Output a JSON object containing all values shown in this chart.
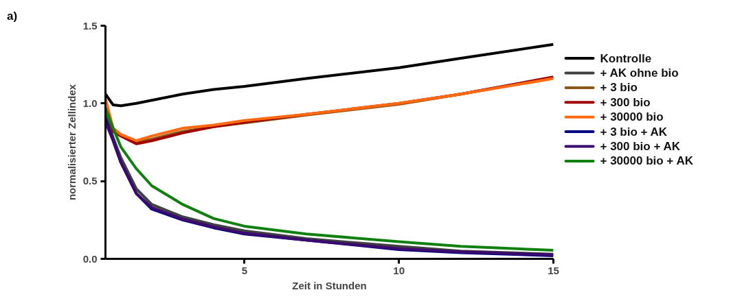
{
  "chart_data": {
    "type": "line",
    "title": "a)",
    "xlabel": "Zeit in Stunden",
    "ylabel": "normalisierter Zellindex",
    "x": [
      0.5,
      0.75,
      1,
      1.5,
      2,
      3,
      4,
      5,
      7,
      10,
      12,
      15
    ],
    "xlim": [
      0.5,
      15
    ],
    "xticks": [
      5,
      10,
      15
    ],
    "ylim": [
      0,
      1.5
    ],
    "yticks": [
      {
        "value": 0,
        "label": "0.0"
      },
      {
        "value": 0.5,
        "label": "0.5"
      },
      {
        "value": 1,
        "label": "1.0"
      },
      {
        "value": 1.5,
        "label": "1.5"
      }
    ],
    "grid": false,
    "legend": "right",
    "marker": "none",
    "line_style": "solid",
    "series": [
      {
        "name": "Kontrolle",
        "color": "#000000",
        "values": [
          1.06,
          0.99,
          0.985,
          1.0,
          1.02,
          1.06,
          1.09,
          1.11,
          1.16,
          1.23,
          1.29,
          1.38
        ]
      },
      {
        "name": "+ AK ohne bio",
        "color": "#404040",
        "values": [
          0.93,
          0.78,
          0.65,
          0.45,
          0.35,
          0.27,
          0.22,
          0.18,
          0.13,
          0.08,
          0.05,
          0.03
        ]
      },
      {
        "name": "+ 3 bio",
        "color": "#8b5a1b",
        "values": [
          1.0,
          0.82,
          0.8,
          0.75,
          0.77,
          0.82,
          0.85,
          0.875,
          0.925,
          0.995,
          1.06,
          1.165
        ]
      },
      {
        "name": "+ 300 bio",
        "color": "#a00000",
        "values": [
          1.0,
          0.82,
          0.79,
          0.74,
          0.76,
          0.81,
          0.85,
          0.88,
          0.93,
          1.0,
          1.06,
          1.17
        ]
      },
      {
        "name": "+ 30000 bio",
        "color": "#ff6a10",
        "values": [
          1.03,
          0.84,
          0.8,
          0.76,
          0.79,
          0.84,
          0.86,
          0.89,
          0.93,
          1.0,
          1.06,
          1.16
        ]
      },
      {
        "name": "+ 3 bio + AK",
        "color": "#000080",
        "values": [
          0.9,
          0.76,
          0.62,
          0.42,
          0.32,
          0.25,
          0.2,
          0.16,
          0.12,
          0.06,
          0.04,
          0.02
        ]
      },
      {
        "name": "+ 300 bio + AK",
        "color": "#3c0a6e",
        "values": [
          0.88,
          0.76,
          0.62,
          0.42,
          0.33,
          0.255,
          0.205,
          0.165,
          0.12,
          0.065,
          0.045,
          0.025
        ]
      },
      {
        "name": "+ 30000 bio + AK",
        "color": "#108010",
        "values": [
          0.97,
          0.84,
          0.72,
          0.58,
          0.47,
          0.35,
          0.26,
          0.21,
          0.16,
          0.11,
          0.08,
          0.055
        ]
      }
    ]
  }
}
